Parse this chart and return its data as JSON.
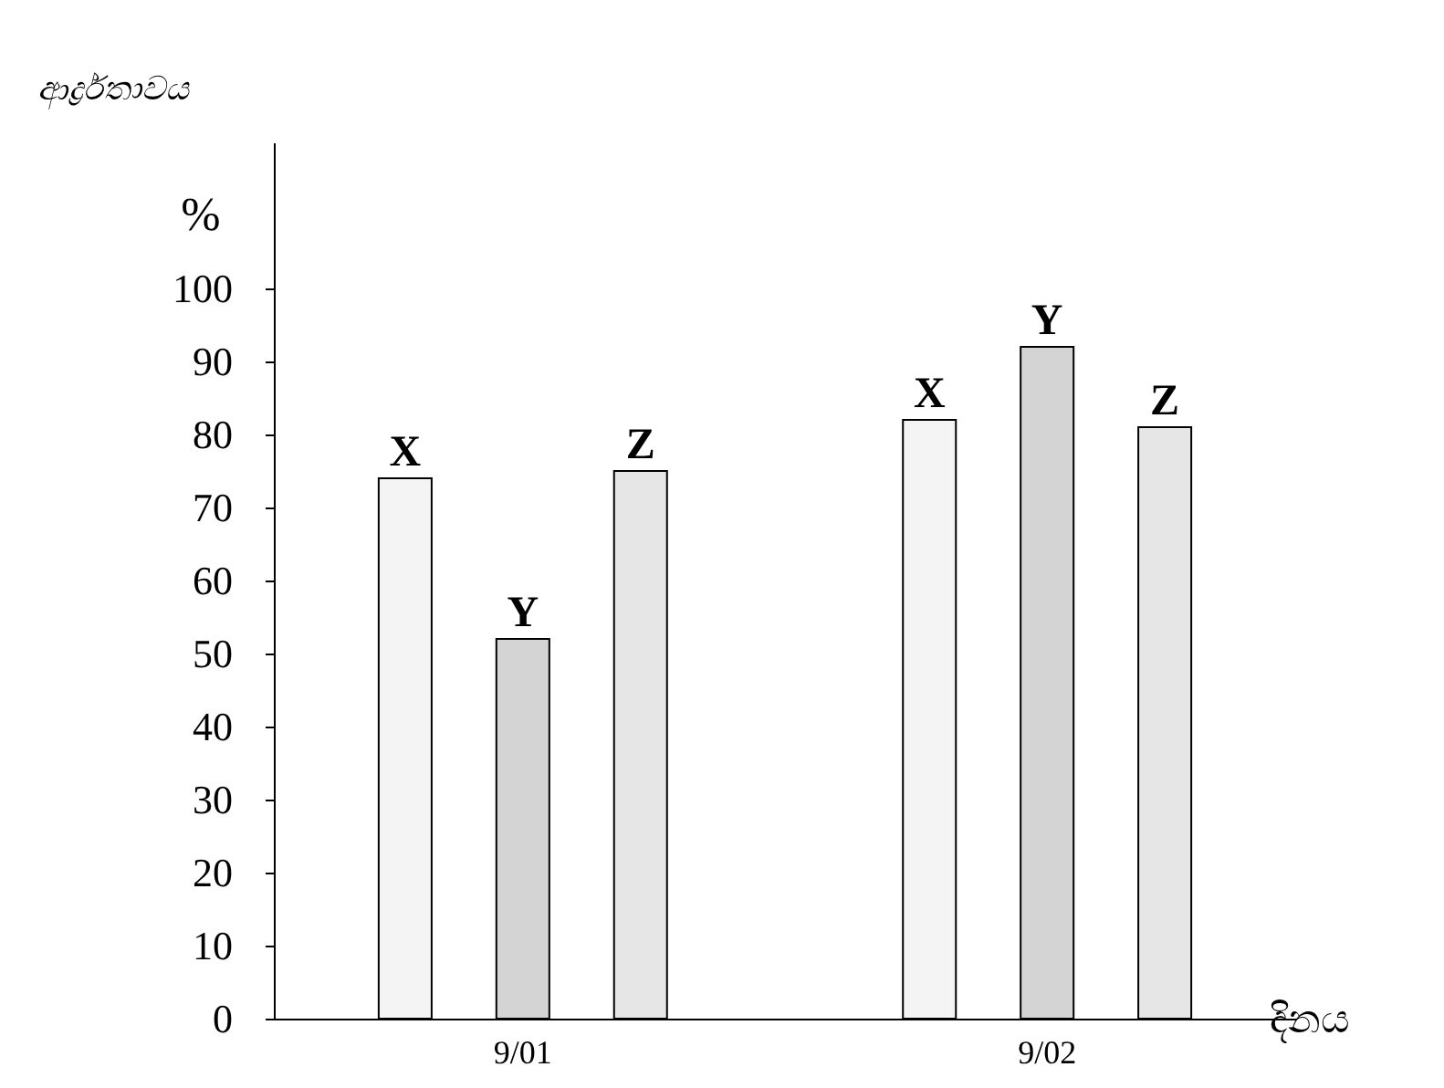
{
  "chart_data": {
    "type": "bar",
    "ylabel": "ආර්ද්‍රතාවය",
    "xlabel": "දිනය",
    "annotations": [
      "%"
    ],
    "categories": [
      "9/01",
      "9/02"
    ],
    "series": [
      {
        "name": "X",
        "color": "#f4f4f4",
        "values": [
          74,
          82
        ]
      },
      {
        "name": "Y",
        "color": "#d4d4d4",
        "values": [
          52,
          92
        ]
      },
      {
        "name": "Z",
        "color": "#e6e6e6",
        "values": [
          75,
          81
        ]
      }
    ],
    "ylim": [
      0,
      120
    ],
    "yticks": [
      0,
      10,
      20,
      30,
      40,
      50,
      60,
      70,
      80,
      90,
      100
    ],
    "grid": false,
    "legend": false
  }
}
